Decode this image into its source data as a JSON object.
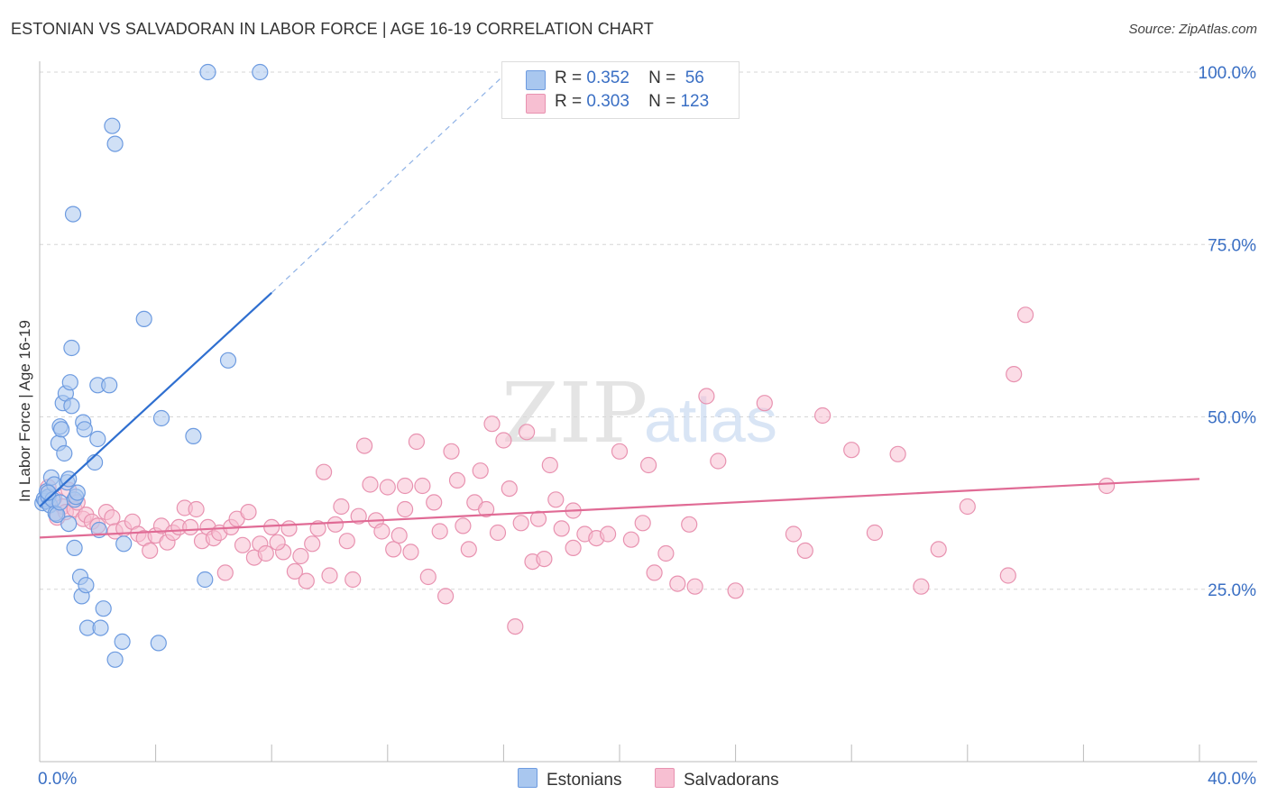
{
  "title": "ESTONIAN VS SALVADORAN IN LABOR FORCE | AGE 16-19 CORRELATION CHART",
  "source": "Source: ZipAtlas.com",
  "watermark": {
    "zip": "ZIP",
    "atlas": "atlas"
  },
  "legend": {
    "rows": [
      {
        "r_label": "R =",
        "r_value": "0.352",
        "n_label": "N =",
        "n_value": "56",
        "color": "#a9c7ef",
        "border": "#6d9be0"
      },
      {
        "r_label": "R =",
        "r_value": "0.303",
        "n_label": "N =",
        "n_value": "123",
        "color": "#f7bfd2",
        "border": "#e892b0"
      }
    ]
  },
  "bottom_legend": [
    {
      "label": "Estonians",
      "color": "#a9c7ef",
      "border": "#6d9be0"
    },
    {
      "label": "Salvadorans",
      "color": "#f7bfd2",
      "border": "#e892b0"
    }
  ],
  "chart_data": {
    "type": "scatter",
    "title": "ESTONIAN VS SALVADORAN IN LABOR FORCE | AGE 16-19 CORRELATION CHART",
    "xlabel": "",
    "ylabel": "In Labor Force | Age 16-19",
    "xlim": [
      0,
      40
    ],
    "ylim": [
      0,
      100
    ],
    "x_tick_labels": [
      {
        "value": 0,
        "label": "0.0%"
      },
      {
        "value": 40,
        "label": "40.0%"
      }
    ],
    "y_tick_labels": [
      {
        "value": 25,
        "label": "25.0%"
      },
      {
        "value": 50,
        "label": "50.0%"
      },
      {
        "value": 75,
        "label": "75.0%"
      },
      {
        "value": 100,
        "label": "100.0%"
      }
    ],
    "grid": true,
    "series": [
      {
        "name": "Estonians",
        "color": "#6d9be0",
        "fill": "#a9c7ef",
        "trend": {
          "x0": 0,
          "y0": 37.0,
          "x1": 8.0,
          "y1": 68.0,
          "dashed_to_x": 16.0,
          "dashed_to_y": 99.5,
          "color": "#2f6fd0"
        },
        "points": [
          [
            0.1,
            37.5
          ],
          [
            0.15,
            38.1
          ],
          [
            0.2,
            37.8
          ],
          [
            0.25,
            39.2
          ],
          [
            0.3,
            38.4
          ],
          [
            0.35,
            37.2
          ],
          [
            0.4,
            41.2
          ],
          [
            0.45,
            38.0
          ],
          [
            0.5,
            40.2
          ],
          [
            0.55,
            36.0
          ],
          [
            0.6,
            35.8
          ],
          [
            0.65,
            46.2
          ],
          [
            0.7,
            48.6
          ],
          [
            0.75,
            48.2
          ],
          [
            0.8,
            52.0
          ],
          [
            0.85,
            44.7
          ],
          [
            0.9,
            53.4
          ],
          [
            0.95,
            40.5
          ],
          [
            1.0,
            34.5
          ],
          [
            1.0,
            41.0
          ],
          [
            1.05,
            55.0
          ],
          [
            1.1,
            51.6
          ],
          [
            1.2,
            38.0
          ],
          [
            1.25,
            38.4
          ],
          [
            1.3,
            39.0
          ],
          [
            1.15,
            79.4
          ],
          [
            1.1,
            60.0
          ],
          [
            1.2,
            31.0
          ],
          [
            1.4,
            26.8
          ],
          [
            1.45,
            24.0
          ],
          [
            1.5,
            49.2
          ],
          [
            1.55,
            48.2
          ],
          [
            1.6,
            25.6
          ],
          [
            1.65,
            19.4
          ],
          [
            1.9,
            43.4
          ],
          [
            2.0,
            46.8
          ],
          [
            2.0,
            54.6
          ],
          [
            2.05,
            33.6
          ],
          [
            2.1,
            19.4
          ],
          [
            2.2,
            22.2
          ],
          [
            2.4,
            54.6
          ],
          [
            2.5,
            92.2
          ],
          [
            2.6,
            89.6
          ],
          [
            2.6,
            14.8
          ],
          [
            2.85,
            17.4
          ],
          [
            2.9,
            31.6
          ],
          [
            3.6,
            64.2
          ],
          [
            4.1,
            17.2
          ],
          [
            4.2,
            49.8
          ],
          [
            5.3,
            47.2
          ],
          [
            5.7,
            26.4
          ],
          [
            5.8,
            100.0
          ],
          [
            6.5,
            58.2
          ],
          [
            7.6,
            100.0
          ],
          [
            0.3,
            39.0
          ],
          [
            0.7,
            37.6
          ]
        ]
      },
      {
        "name": "Salvadorans",
        "color": "#e892b0",
        "fill": "#f7bfd2",
        "trend": {
          "x0": 0,
          "y0": 32.5,
          "x1": 40,
          "y1": 41.0,
          "color": "#e06b95"
        },
        "points": [
          [
            0.3,
            39.8
          ],
          [
            0.5,
            38.2
          ],
          [
            0.6,
            35.4
          ],
          [
            0.8,
            37.0
          ],
          [
            0.9,
            36.2
          ],
          [
            1.0,
            39.4
          ],
          [
            1.2,
            36.6
          ],
          [
            1.3,
            37.6
          ],
          [
            1.5,
            35.2
          ],
          [
            1.6,
            35.8
          ],
          [
            1.8,
            34.8
          ],
          [
            2.0,
            34.2
          ],
          [
            2.3,
            36.2
          ],
          [
            2.5,
            35.4
          ],
          [
            2.6,
            33.4
          ],
          [
            2.9,
            33.8
          ],
          [
            3.2,
            34.8
          ],
          [
            3.4,
            33.0
          ],
          [
            3.6,
            32.4
          ],
          [
            3.8,
            30.6
          ],
          [
            4.0,
            32.8
          ],
          [
            4.2,
            34.2
          ],
          [
            4.4,
            31.8
          ],
          [
            4.6,
            33.2
          ],
          [
            4.8,
            34.0
          ],
          [
            5.0,
            36.8
          ],
          [
            5.2,
            34.0
          ],
          [
            5.4,
            36.6
          ],
          [
            5.6,
            32.0
          ],
          [
            5.8,
            34.0
          ],
          [
            6.0,
            32.4
          ],
          [
            6.2,
            33.2
          ],
          [
            6.4,
            27.4
          ],
          [
            6.6,
            34.0
          ],
          [
            6.8,
            35.2
          ],
          [
            7.0,
            31.4
          ],
          [
            7.2,
            36.2
          ],
          [
            7.4,
            29.6
          ],
          [
            7.6,
            31.6
          ],
          [
            7.8,
            30.2
          ],
          [
            8.0,
            34.0
          ],
          [
            8.4,
            30.4
          ],
          [
            8.6,
            33.8
          ],
          [
            8.8,
            27.6
          ],
          [
            9.0,
            29.8
          ],
          [
            9.2,
            26.2
          ],
          [
            9.4,
            31.6
          ],
          [
            9.6,
            33.8
          ],
          [
            9.8,
            42.0
          ],
          [
            10.0,
            27.0
          ],
          [
            10.2,
            34.4
          ],
          [
            10.4,
            37.0
          ],
          [
            10.6,
            32.0
          ],
          [
            10.8,
            26.4
          ],
          [
            11.0,
            35.6
          ],
          [
            11.2,
            45.8
          ],
          [
            11.4,
            40.2
          ],
          [
            11.6,
            35.0
          ],
          [
            11.8,
            33.4
          ],
          [
            12.0,
            39.8
          ],
          [
            12.2,
            30.8
          ],
          [
            12.4,
            32.8
          ],
          [
            12.6,
            36.6
          ],
          [
            12.8,
            30.4
          ],
          [
            13.0,
            46.4
          ],
          [
            13.2,
            40.0
          ],
          [
            13.4,
            26.8
          ],
          [
            13.6,
            37.6
          ],
          [
            13.8,
            33.4
          ],
          [
            14.0,
            24.0
          ],
          [
            14.2,
            45.0
          ],
          [
            14.4,
            40.8
          ],
          [
            14.6,
            34.2
          ],
          [
            14.8,
            30.8
          ],
          [
            15.0,
            37.6
          ],
          [
            15.2,
            42.2
          ],
          [
            15.4,
            36.6
          ],
          [
            15.6,
            49.0
          ],
          [
            15.8,
            33.2
          ],
          [
            16.0,
            46.6
          ],
          [
            16.2,
            39.6
          ],
          [
            16.4,
            19.6
          ],
          [
            16.6,
            34.6
          ],
          [
            16.8,
            47.8
          ],
          [
            17.0,
            29.0
          ],
          [
            17.2,
            35.2
          ],
          [
            17.4,
            29.4
          ],
          [
            17.6,
            43.0
          ],
          [
            17.8,
            38.0
          ],
          [
            18.0,
            33.8
          ],
          [
            18.4,
            36.4
          ],
          [
            18.8,
            33.0
          ],
          [
            19.2,
            32.4
          ],
          [
            19.6,
            33.0
          ],
          [
            20.0,
            45.0
          ],
          [
            20.4,
            32.2
          ],
          [
            20.8,
            34.6
          ],
          [
            21.2,
            27.4
          ],
          [
            21.6,
            30.2
          ],
          [
            22.0,
            25.8
          ],
          [
            22.4,
            34.4
          ],
          [
            23.0,
            53.0
          ],
          [
            23.4,
            43.6
          ],
          [
            24.0,
            24.8
          ],
          [
            25.0,
            52.0
          ],
          [
            26.0,
            33.0
          ],
          [
            26.4,
            30.6
          ],
          [
            27.0,
            50.2
          ],
          [
            28.0,
            45.2
          ],
          [
            28.8,
            33.2
          ],
          [
            29.6,
            44.6
          ],
          [
            30.4,
            25.4
          ],
          [
            31.0,
            30.8
          ],
          [
            32.0,
            37.0
          ],
          [
            33.4,
            27.0
          ],
          [
            33.6,
            56.2
          ],
          [
            34.0,
            64.8
          ],
          [
            36.8,
            40.0
          ],
          [
            8.2,
            31.8
          ],
          [
            12.6,
            40.0
          ],
          [
            18.4,
            31.0
          ],
          [
            21.0,
            43.0
          ],
          [
            22.6,
            25.4
          ]
        ]
      }
    ]
  }
}
